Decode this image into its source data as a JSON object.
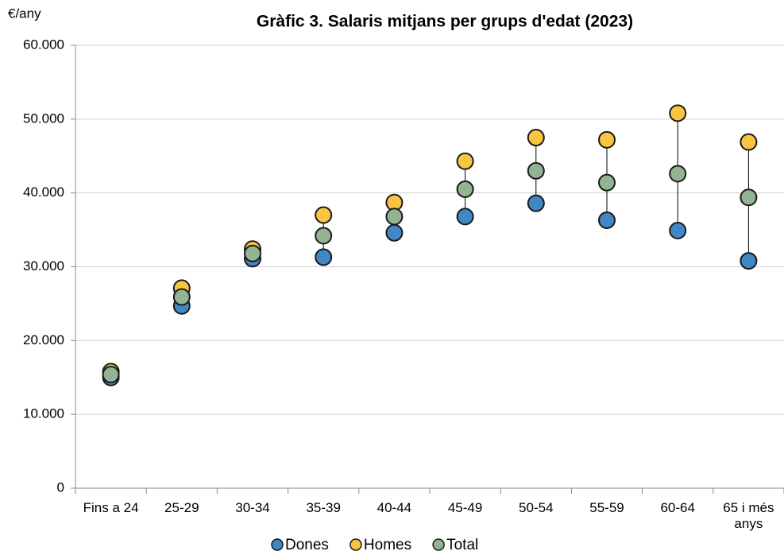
{
  "chart_data": {
    "type": "dot",
    "title": "Gràfic 3. Salaris mitjans per grups d'edat (2023)",
    "y_label": "€/any",
    "categories": [
      "Fins a 24",
      "25-29",
      "30-34",
      "35-39",
      "40-44",
      "45-49",
      "50-54",
      "55-59",
      "60-64",
      "65 i més anys"
    ],
    "series": [
      {
        "name": "Dones",
        "color": "#3f87c5",
        "values": [
          15000,
          24700,
          31100,
          31300,
          34600,
          36800,
          38600,
          36300,
          34900,
          30800
        ]
      },
      {
        "name": "Homes",
        "color": "#f9c440",
        "values": [
          15800,
          27100,
          32400,
          37000,
          38700,
          44300,
          47500,
          47200,
          50800,
          46900
        ]
      },
      {
        "name": "Total",
        "color": "#93b492",
        "values": [
          15400,
          25900,
          31800,
          34200,
          36800,
          40500,
          43000,
          41400,
          42600,
          39400
        ]
      }
    ],
    "ylim": [
      0,
      60000
    ],
    "yticks": [
      0,
      {
        "value": 10000,
        "label": "10.000"
      },
      {
        "value": 20000,
        "label": "20.000"
      },
      {
        "value": 30000,
        "label": "30.000"
      },
      {
        "value": 40000,
        "label": "40.000"
      },
      {
        "value": 50000,
        "label": "50.000"
      },
      {
        "value": 60000,
        "label": "60.000"
      }
    ],
    "grid": true,
    "legend": "bottom"
  }
}
